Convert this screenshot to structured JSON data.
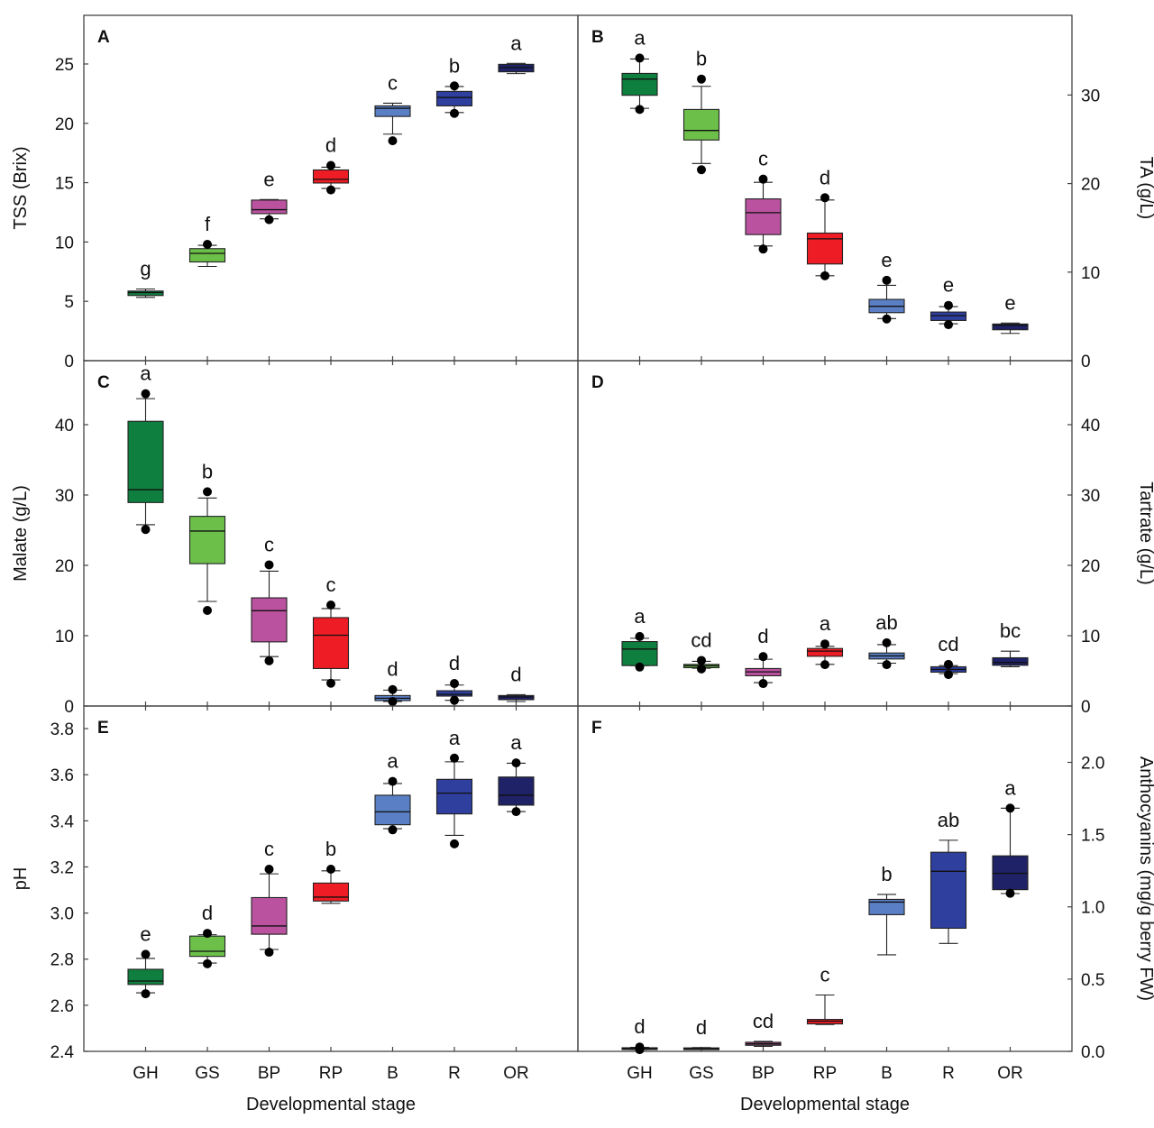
{
  "chart_data": [
    {
      "type": "box",
      "panel": "A",
      "ylabel": "TSS (Brix)",
      "axis_side": "left",
      "ylim": [
        0,
        29.1
      ],
      "yticks": [
        0,
        5,
        10,
        15,
        20,
        25
      ],
      "yticklabels": [
        "0",
        "5",
        "10",
        "15",
        "20",
        "25"
      ],
      "categories": [
        "GH",
        "GS",
        "BP",
        "RP",
        "B",
        "R",
        "OR"
      ],
      "xlabel": "",
      "boxes": [
        {
          "cat": "GH",
          "lo": 5.33,
          "q1": 5.49,
          "median": 5.74,
          "q3": 5.87,
          "hi": 6.04,
          "outliers": [],
          "letter": "g"
        },
        {
          "cat": "GS",
          "lo": 7.94,
          "q1": 8.32,
          "median": 9.04,
          "q3": 9.44,
          "hi": 9.72,
          "outliers": [
            9.8
          ],
          "letter": "f"
        },
        {
          "cat": "BP",
          "lo": 11.95,
          "q1": 12.39,
          "median": 12.72,
          "q3": 13.53,
          "hi": 13.58,
          "outliers": [
            11.88
          ],
          "letter": "e"
        },
        {
          "cat": "RP",
          "lo": 14.52,
          "q1": 14.97,
          "median": 15.28,
          "q3": 16.07,
          "hi": 16.3,
          "outliers": [
            16.45,
            14.39
          ],
          "letter": "d"
        },
        {
          "cat": "B",
          "lo": 19.09,
          "q1": 20.58,
          "median": 21.27,
          "q3": 21.47,
          "hi": 21.7,
          "outliers": [
            18.53
          ],
          "letter": "c"
        },
        {
          "cat": "R",
          "lo": 20.91,
          "q1": 21.47,
          "median": 22.18,
          "q3": 22.69,
          "hi": 23.1,
          "outliers": [
            23.15,
            20.84
          ],
          "letter": "b"
        },
        {
          "cat": "OR",
          "lo": 24.19,
          "q1": 24.34,
          "median": 24.7,
          "q3": 24.97,
          "hi": 25.05,
          "outliers": [],
          "letter": "a"
        }
      ]
    },
    {
      "type": "box",
      "panel": "B",
      "ylabel": "TA (g/L)",
      "axis_side": "right",
      "ylim": [
        0,
        39
      ],
      "yticks": [
        0,
        10,
        20,
        30
      ],
      "yticklabels": [
        "0",
        "10",
        "20",
        "30"
      ],
      "categories": [
        "GH",
        "GS",
        "BP",
        "RP",
        "B",
        "R",
        "OR"
      ],
      "xlabel": "",
      "boxes": [
        {
          "cat": "GH",
          "lo": 28.5,
          "q1": 29.97,
          "median": 31.8,
          "q3": 32.44,
          "hi": 34.07,
          "outliers": [
            34.17,
            28.37
          ],
          "letter": "a"
        },
        {
          "cat": "GS",
          "lo": 22.27,
          "q1": 24.92,
          "median": 26.0,
          "q3": 28.37,
          "hi": 30.98,
          "outliers": [
            31.8,
            21.56
          ],
          "letter": "b"
        },
        {
          "cat": "BP",
          "lo": 12.95,
          "q1": 14.24,
          "median": 16.71,
          "q3": 18.27,
          "hi": 20.14,
          "outliers": [
            20.5,
            12.61
          ],
          "letter": "c"
        },
        {
          "cat": "RP",
          "lo": 9.59,
          "q1": 10.92,
          "median": 13.76,
          "q3": 14.41,
          "hi": 18.14,
          "outliers": [
            18.4,
            9.59
          ],
          "letter": "d"
        },
        {
          "cat": "B",
          "lo": 4.75,
          "q1": 5.42,
          "median": 6.14,
          "q3": 6.92,
          "hi": 8.51,
          "outliers": [
            9.08,
            4.71
          ],
          "letter": "e"
        },
        {
          "cat": "R",
          "lo": 4.17,
          "q1": 4.54,
          "median": 5.08,
          "q3": 5.49,
          "hi": 6.1,
          "outliers": [
            6.24,
            4.07
          ],
          "letter": "e"
        },
        {
          "cat": "OR",
          "lo": 3.08,
          "q1": 3.49,
          "median": 4.0,
          "q3": 4.14,
          "hi": 4.24,
          "outliers": [],
          "letter": "e"
        }
      ]
    },
    {
      "type": "box",
      "panel": "C",
      "ylabel": "Malate (g/L)",
      "axis_side": "left",
      "ylim": [
        0,
        49.1
      ],
      "yticks": [
        0,
        10,
        20,
        30,
        40
      ],
      "yticklabels": [
        "0",
        "10",
        "20",
        "30",
        "40"
      ],
      "categories": [
        "GH",
        "GS",
        "BP",
        "RP",
        "B",
        "R",
        "OR"
      ],
      "xlabel": "",
      "boxes": [
        {
          "cat": "GH",
          "lo": 25.78,
          "q1": 28.93,
          "median": 30.76,
          "q3": 40.48,
          "hi": 43.7,
          "outliers": [
            44.4,
            25.1
          ],
          "letter": "a"
        },
        {
          "cat": "GS",
          "lo": 14.87,
          "q1": 20.24,
          "median": 24.88,
          "q3": 26.97,
          "hi": 29.57,
          "outliers": [
            30.46,
            13.59
          ],
          "letter": "b"
        },
        {
          "cat": "BP",
          "lo": 7.03,
          "q1": 9.12,
          "median": 13.55,
          "q3": 15.38,
          "hi": 19.17,
          "outliers": [
            20.07,
            6.43
          ],
          "letter": "c"
        },
        {
          "cat": "RP",
          "lo": 3.71,
          "q1": 5.33,
          "median": 10.06,
          "q3": 12.57,
          "hi": 13.85,
          "outliers": [
            14.36,
            3.24
          ],
          "letter": "c"
        },
        {
          "cat": "B",
          "lo": 0.64,
          "q1": 0.77,
          "median": 1.11,
          "q3": 1.49,
          "hi": 2.26,
          "outliers": [
            2.34,
            0.64
          ],
          "letter": "d"
        },
        {
          "cat": "R",
          "lo": 0.81,
          "q1": 1.41,
          "median": 1.66,
          "q3": 2.17,
          "hi": 2.98,
          "outliers": [
            3.2,
            0.81
          ],
          "letter": "d"
        },
        {
          "cat": "OR",
          "lo": 0.64,
          "q1": 0.9,
          "median": 1.28,
          "q3": 1.49,
          "hi": 1.62,
          "outliers": [],
          "letter": "d"
        }
      ]
    },
    {
      "type": "box",
      "panel": "D",
      "ylabel": "Tartrate (g/L)",
      "axis_side": "right",
      "ylim": [
        0,
        49.1
      ],
      "yticks": [
        0,
        10,
        20,
        30,
        40
      ],
      "yticklabels": [
        "0",
        "10",
        "20",
        "30",
        "40"
      ],
      "categories": [
        "GH",
        "GS",
        "BP",
        "RP",
        "B",
        "R",
        "OR"
      ],
      "xlabel": "",
      "boxes": [
        {
          "cat": "GH",
          "lo": 5.75,
          "q1": 5.75,
          "median": 8.1,
          "q3": 9.16,
          "hi": 9.63,
          "outliers": [
            9.88,
            5.54
          ],
          "letter": "a"
        },
        {
          "cat": "GS",
          "lo": 5.37,
          "q1": 5.45,
          "median": 5.71,
          "q3": 5.92,
          "hi": 6.35,
          "outliers": [
            6.48,
            5.28
          ],
          "letter": "cd"
        },
        {
          "cat": "BP",
          "lo": 3.32,
          "q1": 4.3,
          "median": 4.86,
          "q3": 5.33,
          "hi": 6.65,
          "outliers": [
            7.03,
            3.2
          ],
          "letter": "d"
        },
        {
          "cat": "RP",
          "lo": 5.92,
          "q1": 7.07,
          "median": 7.8,
          "q3": 8.18,
          "hi": 8.48,
          "outliers": [
            8.82,
            5.88
          ],
          "letter": "a"
        },
        {
          "cat": "B",
          "lo": 6.09,
          "q1": 6.69,
          "median": 7.12,
          "q3": 7.54,
          "hi": 8.73,
          "outliers": [
            8.99,
            5.88
          ],
          "letter": "ab"
        },
        {
          "cat": "R",
          "lo": 4.6,
          "q1": 4.81,
          "median": 5.2,
          "q3": 5.58,
          "hi": 5.75,
          "outliers": [
            5.92,
            4.47
          ],
          "letter": "cd"
        },
        {
          "cat": "OR",
          "lo": 5.58,
          "q1": 5.79,
          "median": 6.18,
          "q3": 6.86,
          "hi": 7.8,
          "outliers": [],
          "letter": "bc"
        }
      ]
    },
    {
      "type": "box",
      "panel": "E",
      "ylabel": "pH",
      "axis_side": "left",
      "ylim": [
        2.4,
        3.898
      ],
      "yticks": [
        2.4,
        2.6,
        2.8,
        3.0,
        3.2,
        3.4,
        3.6,
        3.8
      ],
      "yticklabels": [
        "2.4",
        "2.6",
        "2.8",
        "3.0",
        "3.2",
        "3.4",
        "3.6",
        "3.8"
      ],
      "categories": [
        "GH",
        "GS",
        "BP",
        "RP",
        "B",
        "R",
        "OR"
      ],
      "xlabel": "Developmental stage",
      "boxes": [
        {
          "cat": "GH",
          "lo": 2.654,
          "q1": 2.69,
          "median": 2.705,
          "q3": 2.756,
          "hi": 2.803,
          "outliers": [
            2.821,
            2.65
          ],
          "letter": "e"
        },
        {
          "cat": "GS",
          "lo": 2.783,
          "q1": 2.812,
          "median": 2.834,
          "q3": 2.9,
          "hi": 2.906,
          "outliers": [
            2.912,
            2.78
          ],
          "letter": "d"
        },
        {
          "cat": "BP",
          "lo": 2.842,
          "q1": 2.908,
          "median": 2.944,
          "q3": 3.067,
          "hi": 3.17,
          "outliers": [
            3.19,
            2.83
          ],
          "letter": "c"
        },
        {
          "cat": "RP",
          "lo": 3.042,
          "q1": 3.052,
          "median": 3.069,
          "q3": 3.13,
          "hi": 3.183,
          "outliers": [
            3.19
          ],
          "letter": "b"
        },
        {
          "cat": "B",
          "lo": 3.366,
          "q1": 3.383,
          "median": 3.439,
          "q3": 3.511,
          "hi": 3.562,
          "outliers": [
            3.571,
            3.361
          ],
          "letter": "a"
        },
        {
          "cat": "R",
          "lo": 3.337,
          "q1": 3.43,
          "median": 3.52,
          "q3": 3.58,
          "hi": 3.656,
          "outliers": [
            3.672,
            3.3
          ],
          "letter": "a"
        },
        {
          "cat": "OR",
          "lo": 3.44,
          "q1": 3.468,
          "median": 3.511,
          "q3": 3.59,
          "hi": 3.65,
          "outliers": [
            3.651,
            3.44
          ],
          "letter": "a"
        }
      ]
    },
    {
      "type": "box",
      "panel": "F",
      "ylabel": "Anthocyanins (mg/g berry FW)",
      "axis_side": "right",
      "ylim": [
        0,
        2.39
      ],
      "yticks": [
        0,
        0.5,
        1.0,
        1.5,
        2.0
      ],
      "yticklabels": [
        "0.0",
        "0.5",
        "1.0",
        "1.5",
        "2.0"
      ],
      "categories": [
        "GH",
        "GS",
        "BP",
        "RP",
        "B",
        "R",
        "OR"
      ],
      "xlabel": "Developmental stage",
      "boxes": [
        {
          "cat": "GH",
          "lo": 0.012,
          "q1": 0.015,
          "median": 0.019,
          "q3": 0.025,
          "hi": 0.028,
          "outliers": [
            0.03,
            0.012
          ],
          "letter": "d"
        },
        {
          "cat": "GS",
          "lo": 0.013,
          "q1": 0.015,
          "median": 0.019,
          "q3": 0.024,
          "hi": 0.026,
          "outliers": [],
          "letter": "d"
        },
        {
          "cat": "BP",
          "lo": 0.035,
          "q1": 0.042,
          "median": 0.052,
          "q3": 0.063,
          "hi": 0.069,
          "outliers": [],
          "letter": "cd"
        },
        {
          "cat": "RP",
          "lo": 0.186,
          "q1": 0.19,
          "median": 0.209,
          "q3": 0.221,
          "hi": 0.39,
          "outliers": [],
          "letter": "c"
        },
        {
          "cat": "B",
          "lo": 0.668,
          "q1": 0.946,
          "median": 1.033,
          "q3": 1.052,
          "hi": 1.086,
          "outliers": [],
          "letter": "b"
        },
        {
          "cat": "R",
          "lo": 0.747,
          "q1": 0.852,
          "median": 1.246,
          "q3": 1.378,
          "hi": 1.461,
          "outliers": [],
          "letter": "ab"
        },
        {
          "cat": "OR",
          "lo": 1.092,
          "q1": 1.119,
          "median": 1.232,
          "q3": 1.353,
          "hi": 1.683,
          "outliers": [
            1.683,
            1.094
          ],
          "letter": "a"
        }
      ]
    }
  ],
  "colors": {
    "GH": "#0f7f3f",
    "GS": "#6cc04a",
    "BP": "#bb52a0",
    "RP": "#ee1c24",
    "B": "#5a7fc4",
    "R": "#2e3f9e",
    "OR": "#1f2266"
  }
}
